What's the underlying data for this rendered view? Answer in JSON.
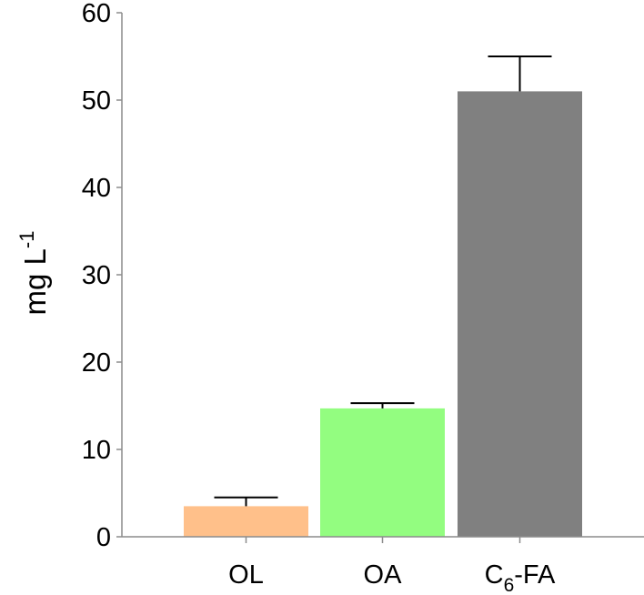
{
  "chart_data": {
    "type": "bar",
    "title": "",
    "xlabel": "",
    "ylabel": "mg L-1",
    "ylabel_parts": {
      "base": "mg L",
      "sup": "-1"
    },
    "ylim": [
      0,
      60
    ],
    "yticks": [
      0,
      10,
      20,
      30,
      40,
      50,
      60
    ],
    "grid": false,
    "legend": null,
    "categories": [
      "OL",
      "OA",
      "C6-FA"
    ],
    "category_labels": [
      {
        "base": "OL",
        "sub": "",
        "rest": ""
      },
      {
        "base": "OA",
        "sub": "",
        "rest": ""
      },
      {
        "base": "C",
        "sub": "6",
        "rest": "-FA"
      }
    ],
    "values": [
      3.5,
      14.7,
      51.0
    ],
    "error_upper": [
      1.0,
      0.6,
      4.0
    ],
    "colors": [
      "#ffc08a",
      "#93fd80",
      "#808080"
    ]
  }
}
